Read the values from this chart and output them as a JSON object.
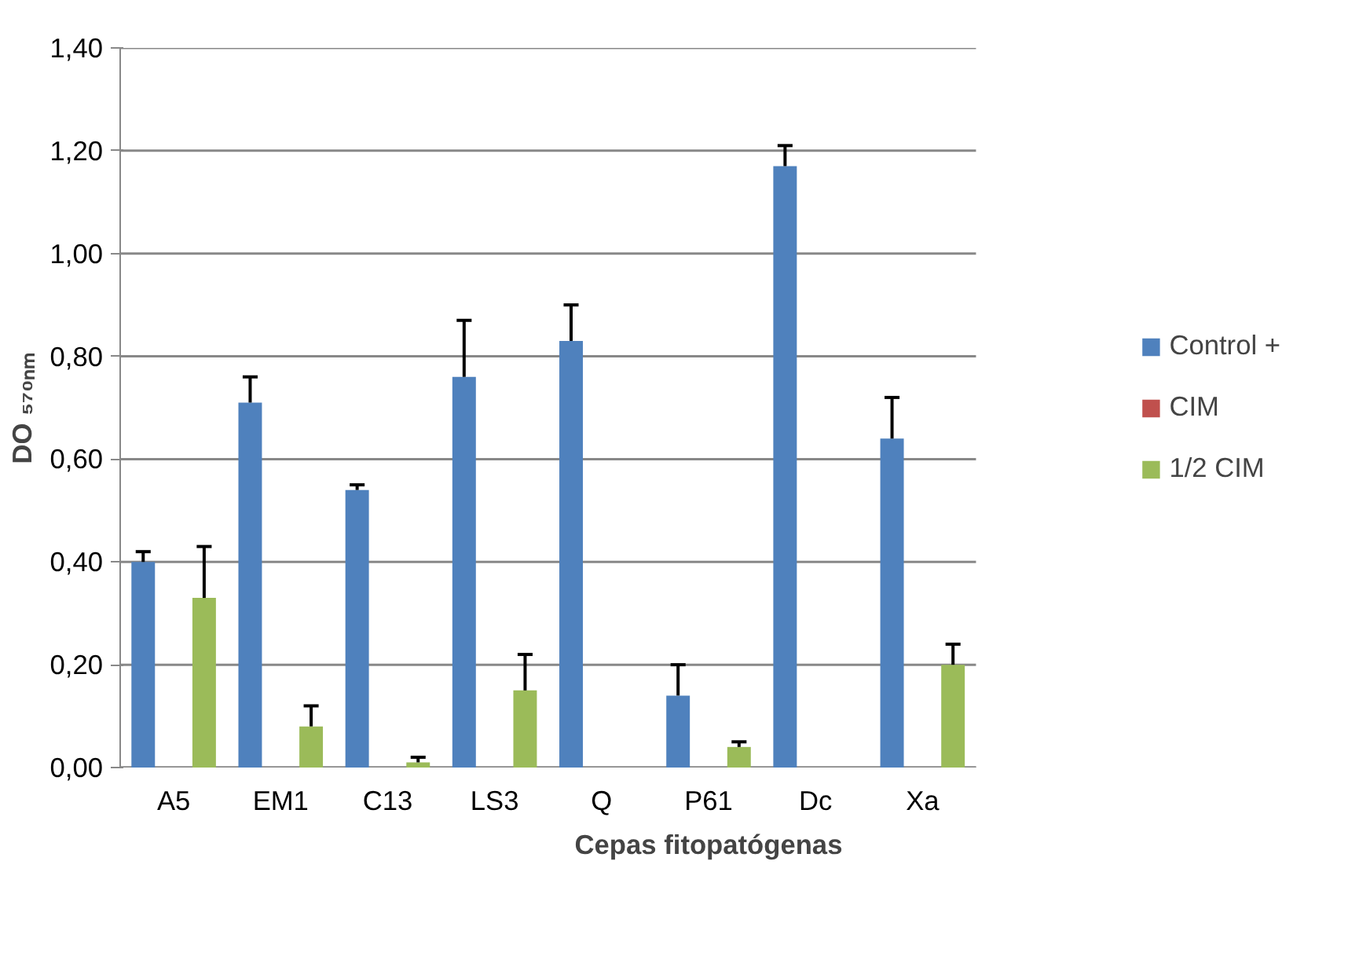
{
  "chart_data": {
    "type": "bar",
    "xlabel": "Cepas fitopatógenas",
    "ylabel": "DO ₅₇₀ₙₘ",
    "categories": [
      "A5",
      "EM1",
      "C13",
      "LS3",
      "Q",
      "P61",
      "Dc",
      "Xa"
    ],
    "series": [
      {
        "name": "Control +",
        "color": "#4f81bd",
        "values": [
          0.4,
          0.71,
          0.54,
          0.76,
          0.83,
          0.14,
          1.17,
          0.64
        ],
        "errors": [
          [
            0.4,
            0.42
          ],
          [
            0.71,
            0.76
          ],
          [
            0.54,
            0.55
          ],
          [
            0.76,
            0.87
          ],
          [
            0.83,
            0.9
          ],
          [
            0.14,
            0.2
          ],
          [
            1.17,
            1.21
          ],
          [
            0.64,
            0.72
          ]
        ]
      },
      {
        "name": "CIM",
        "color": "#c0504d",
        "values": [
          0,
          0,
          0,
          0,
          0,
          0,
          0,
          0
        ]
      },
      {
        "name": "1/2 CIM",
        "color": "#9bbb59",
        "values": [
          0.33,
          0.08,
          0.01,
          0.15,
          0,
          0.04,
          0,
          0.2
        ],
        "errors": [
          [
            0.33,
            0.43
          ],
          [
            0.08,
            0.12
          ],
          [
            0.01,
            0.02
          ],
          [
            0.15,
            0.22
          ],
          null,
          [
            0.04,
            0.05
          ],
          null,
          [
            0.2,
            0.24
          ]
        ]
      }
    ],
    "ylim": [
      0,
      1.4
    ],
    "yticks": [
      {
        "value": 0,
        "label": "0,00"
      },
      {
        "value": 0.2,
        "label": "0,20"
      },
      {
        "value": 0.4,
        "label": "0,40"
      },
      {
        "value": 0.6,
        "label": "0,60"
      },
      {
        "value": 0.8,
        "label": "0,80"
      },
      {
        "value": 1.0,
        "label": "1,00"
      },
      {
        "value": 1.2,
        "label": "1,20"
      },
      {
        "value": 1.4,
        "label": "1,40"
      }
    ],
    "grid": "y",
    "legend": "right"
  }
}
